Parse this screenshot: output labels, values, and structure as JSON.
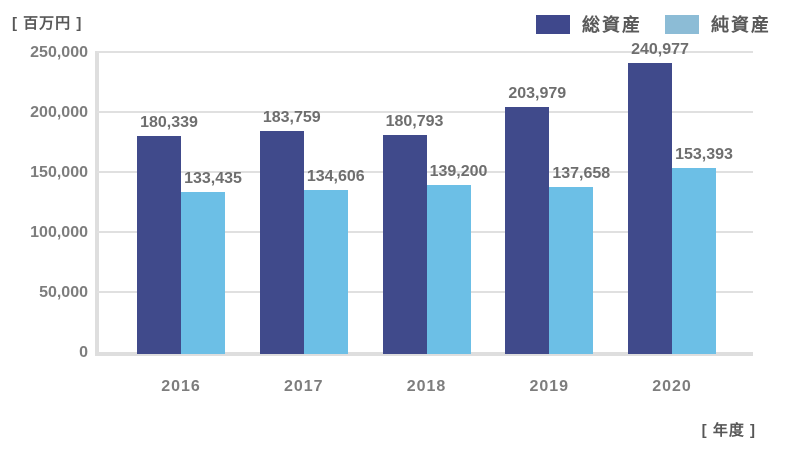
{
  "chart_data": {
    "type": "bar",
    "title": "",
    "unit_label": "[ 百万円 ]",
    "x_unit_label": "[ 年度 ]",
    "categories": [
      "2016",
      "2017",
      "2018",
      "2019",
      "2020"
    ],
    "series": [
      {
        "name": "総資産",
        "color": "#404a8b",
        "legend_color": "#3f488c",
        "values": [
          180339,
          183759,
          180793,
          203979,
          240977
        ],
        "labels": [
          "180,339",
          "183,759",
          "180,793",
          "203,979",
          "240,977"
        ]
      },
      {
        "name": "純資産",
        "color": "#6cbfe6",
        "legend_color": "#8cbcd6",
        "values": [
          133435,
          134606,
          139200,
          137658,
          153393
        ],
        "labels": [
          "133,435",
          "134,606",
          "139,200",
          "137,658",
          "153,393"
        ]
      }
    ],
    "ylim": [
      0,
      250000
    ],
    "ytick_step": 50000,
    "yticks": [
      "250,000",
      "200,000",
      "150,000",
      "100,000",
      "50,000",
      "0"
    ],
    "grid": true,
    "legend_position": "top-right",
    "colors": {
      "gridline": "#e0e0e0",
      "axis": "#dedede",
      "tick_text": "#7d7d7d",
      "value_text": "#6e6e6e",
      "legend_text": "#595959",
      "unit_text": "#575757",
      "background": "#ffffff"
    }
  }
}
